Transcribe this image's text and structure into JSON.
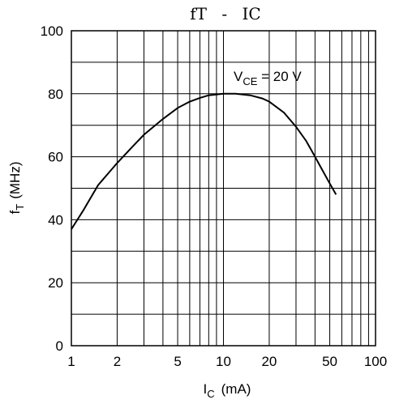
{
  "chart_data": {
    "type": "line",
    "title": "fT - IC",
    "title_main": "fT",
    "title_dash": "-",
    "title_sub": "IC",
    "xlabel": "I",
    "xlabel_sub": "C",
    "xlabel_unit": "(mA)",
    "ylabel": "f",
    "ylabel_sub": "T",
    "ylabel_unit": "(MHz)",
    "x_scale": "log",
    "xlim": [
      1,
      100
    ],
    "ylim": [
      0,
      100
    ],
    "x_ticks": [
      {
        "value": 1,
        "label": "1"
      },
      {
        "value": 2,
        "label": "2"
      },
      {
        "value": 5,
        "label": "5"
      },
      {
        "value": 10,
        "label": "10"
      },
      {
        "value": 20,
        "label": "20"
      },
      {
        "value": 50,
        "label": "50"
      },
      {
        "value": 100,
        "label": "100"
      }
    ],
    "y_ticks": [
      {
        "value": 0,
        "label": "0"
      },
      {
        "value": 20,
        "label": "20"
      },
      {
        "value": 40,
        "label": "40"
      },
      {
        "value": 60,
        "label": "60"
      },
      {
        "value": 80,
        "label": "80"
      },
      {
        "value": 100,
        "label": "100"
      }
    ],
    "annotation": {
      "text": "V",
      "sub": "CE",
      "rest": " = 20 V"
    },
    "grid": true,
    "line_color": "#000000",
    "series": [
      {
        "x": [
          1.0,
          1.2,
          1.5,
          2.0,
          2.5,
          3.0,
          4.0,
          5.0,
          6.0,
          7.0,
          8.0,
          10.0,
          12.0,
          15.0,
          18.0,
          20.0,
          25.0,
          30.0,
          35.0,
          40.0,
          45.0,
          50.0,
          55.0
        ],
        "y": [
          37,
          43,
          51,
          58,
          63,
          67,
          72,
          75.5,
          77.5,
          78.7,
          79.5,
          80,
          80,
          79.5,
          78.5,
          77.5,
          74,
          69.5,
          65,
          60,
          55.5,
          51.5,
          48
        ]
      }
    ]
  }
}
